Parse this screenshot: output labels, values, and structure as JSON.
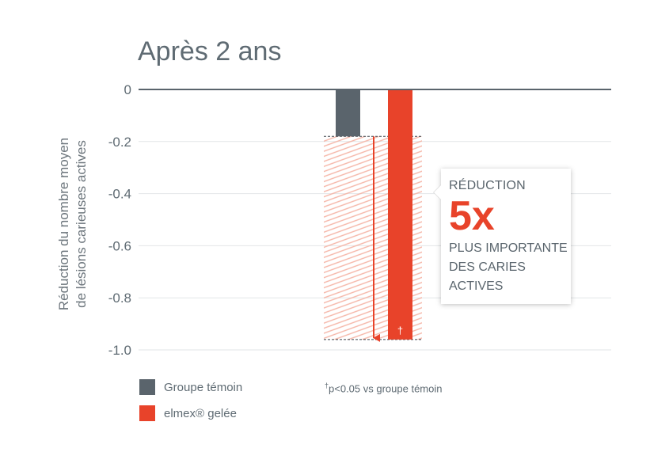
{
  "title": "Après 2 ans",
  "ylabel_lines": [
    "Réduction du nombre moyen",
    "de lésions carieuses actives"
  ],
  "chart_data": {
    "type": "bar",
    "title": "Après 2 ans",
    "ylabel": "Réduction du nombre moyen de lésions carieuses actives",
    "ylim": [
      -1.0,
      0
    ],
    "yticks": [
      "0",
      "-0.2",
      "-0.4",
      "-0.6",
      "-0.8",
      "-1.0"
    ],
    "ytick_values": [
      0,
      -0.2,
      -0.4,
      -0.6,
      -0.8,
      -1.0
    ],
    "grid": true,
    "series": [
      {
        "name": "Groupe témoin",
        "value": -0.18,
        "color": "#5a646c"
      },
      {
        "name": "elmex® gelée",
        "value": -0.96,
        "color": "#e8432a",
        "marker": "†"
      }
    ]
  },
  "callout": {
    "top": "RÉDUCTION",
    "big": "5x",
    "bottom_lines": [
      "PLUS IMPORTANTE",
      "DES CARIES",
      "ACTIVES"
    ]
  },
  "legend": [
    {
      "label": "Groupe témoin",
      "color": "#5a646c"
    },
    {
      "label": "elmex® gelée",
      "color": "#e8432a"
    }
  ],
  "footnote": {
    "mark": "†",
    "text": "p<0.05  vs groupe témoin"
  }
}
